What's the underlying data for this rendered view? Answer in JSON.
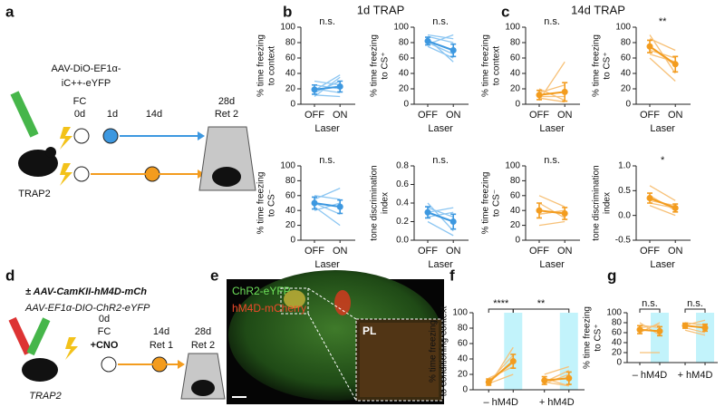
{
  "figure": {
    "panel_labels": [
      "a",
      "b",
      "c",
      "d",
      "e",
      "f",
      "g"
    ],
    "titles": [
      "1d TRAP",
      "14d TRAP"
    ]
  },
  "panel_a": {
    "virus": [
      "AAV-DiO-EF1α-",
      "iC++-eYFP"
    ],
    "fc": "FC",
    "day0": "0d",
    "day1": "1d",
    "day14": "14d",
    "day28": "28d",
    "ret": "Ret 2",
    "mouse": "TRAP2"
  },
  "panel_d": {
    "virus": [
      "± AAV-CamKII-hM4D-mCh",
      "AAV-EF1α-DIO-ChR2-eYFP"
    ],
    "day0": "0d",
    "fc": "FC",
    "cno": "+CNO",
    "day14": "14d",
    "ret1": "Ret 1",
    "day28": "28d",
    "ret2": "Ret 2",
    "mouse": "TRAP2"
  },
  "panel_e": {
    "green": "ChR2-eYFP",
    "red": "hM4D-mCherry",
    "region": "PL"
  },
  "chart_data": [
    {
      "type": "line",
      "ylabel": [
        "% time freezing",
        "to context"
      ],
      "ylim": [
        0,
        100
      ],
      "yticks": [
        0,
        20,
        40,
        60,
        80,
        100
      ],
      "categories": [
        "OFF",
        "ON"
      ],
      "xlabel": "Laser",
      "annotations": [
        "n.s."
      ],
      "color": "#3d98e0",
      "individual_color": "#8cc6f2",
      "values": [
        19,
        23
      ],
      "errors": [
        6,
        7
      ],
      "individuals": [
        [
          [
            10,
            35
          ],
          [
            15,
            30
          ],
          [
            20,
            15
          ],
          [
            25,
            20
          ],
          [
            18,
            38
          ],
          [
            30,
            25
          ],
          [
            12,
            10
          ]
        ]
      ]
    },
    {
      "type": "line",
      "ylabel": [
        "% time freezing",
        "to CS⁺"
      ],
      "ylim": [
        0,
        100
      ],
      "yticks": [
        0,
        20,
        40,
        60,
        80,
        100
      ],
      "categories": [
        "OFF",
        "ON"
      ],
      "xlabel": "Laser",
      "annotations": [
        "n.s."
      ],
      "color": "#3d98e0",
      "individual_color": "#8cc6f2",
      "values": [
        82,
        70
      ],
      "errors": [
        5,
        8
      ],
      "individuals": [
        [
          [
            90,
            85
          ],
          [
            85,
            55
          ],
          [
            80,
            65
          ],
          [
            88,
            80
          ],
          [
            75,
            60
          ],
          [
            78,
            90
          ]
        ]
      ]
    },
    {
      "type": "line",
      "ylabel": [
        "% time freezing",
        "to CS⁻"
      ],
      "ylim": [
        0,
        100
      ],
      "yticks": [
        0,
        20,
        40,
        60,
        80,
        100
      ],
      "categories": [
        "OFF",
        "ON"
      ],
      "xlabel": "Laser",
      "annotations": [
        "n.s."
      ],
      "color": "#3d98e0",
      "individual_color": "#8cc6f2",
      "values": [
        50,
        45
      ],
      "errors": [
        8,
        9
      ],
      "individuals": [
        [
          [
            60,
            55
          ],
          [
            45,
            20
          ],
          [
            55,
            70
          ],
          [
            40,
            50
          ],
          [
            50,
            35
          ]
        ]
      ]
    },
    {
      "type": "line",
      "ylabel": [
        "tone discrimination",
        "index"
      ],
      "ylim": [
        0,
        0.8
      ],
      "yticks": [
        {
          "value": 0,
          "label": "0.0"
        },
        0.2,
        0.4,
        0.6,
        0.8
      ],
      "categories": [
        "OFF",
        "ON"
      ],
      "xlabel": "Laser",
      "annotations": [
        "n.s."
      ],
      "color": "#3d98e0",
      "individual_color": "#8cc6f2",
      "values": [
        0.3,
        0.2
      ],
      "errors": [
        0.06,
        0.08
      ],
      "individuals": [
        [
          [
            0.4,
            0.1
          ],
          [
            0.3,
            0.35
          ],
          [
            0.2,
            0.05
          ],
          [
            0.35,
            0.25
          ],
          [
            0.25,
            0.3
          ]
        ]
      ]
    },
    {
      "type": "line",
      "ylabel": [
        "% time freezing",
        "to context"
      ],
      "ylim": [
        0,
        100
      ],
      "yticks": [
        0,
        20,
        40,
        60,
        80,
        100
      ],
      "categories": [
        "OFF",
        "ON"
      ],
      "xlabel": "Laser",
      "annotations": [
        "n.s."
      ],
      "color": "#f39c1e",
      "individual_color": "#f7c178",
      "values": [
        12,
        16
      ],
      "errors": [
        6,
        12
      ],
      "individuals": [
        [
          [
            5,
            55
          ],
          [
            20,
            5
          ],
          [
            10,
            10
          ],
          [
            15,
            25
          ],
          [
            8,
            3
          ]
        ]
      ]
    },
    {
      "type": "line",
      "ylabel": [
        "% time freezing",
        "to CS⁺"
      ],
      "ylim": [
        0,
        100
      ],
      "yticks": [
        0,
        20,
        40,
        60,
        80,
        100
      ],
      "categories": [
        "OFF",
        "ON"
      ],
      "xlabel": "Laser",
      "annotations": [
        "**"
      ],
      "color": "#f39c1e",
      "individual_color": "#f7c178",
      "values": [
        75,
        52
      ],
      "errors": [
        8,
        10
      ],
      "individuals": [
        [
          [
            85,
            70
          ],
          [
            90,
            40
          ],
          [
            70,
            60
          ],
          [
            60,
            30
          ],
          [
            75,
            50
          ],
          [
            65,
            55
          ]
        ]
      ]
    },
    {
      "type": "line",
      "ylabel": [
        "% time freezing",
        "to CS⁻"
      ],
      "ylim": [
        0,
        100
      ],
      "yticks": [
        0,
        20,
        40,
        60,
        80,
        100
      ],
      "categories": [
        "OFF",
        "ON"
      ],
      "xlabel": "Laser",
      "annotations": [
        "n.s."
      ],
      "color": "#f39c1e",
      "individual_color": "#f7c178",
      "values": [
        40,
        36
      ],
      "errors": [
        10,
        8
      ],
      "individuals": [
        [
          [
            60,
            45
          ],
          [
            50,
            30
          ],
          [
            35,
            40
          ],
          [
            20,
            25
          ],
          [
            35,
            40
          ]
        ]
      ]
    },
    {
      "type": "line",
      "ylabel": [
        "tone discrimination",
        "index"
      ],
      "ylim": [
        -0.5,
        1
      ],
      "yticks": [
        -0.5,
        {
          "value": 0,
          "label": "0.0"
        },
        0.5,
        {
          "value": 1,
          "label": "1.0"
        }
      ],
      "categories": [
        "OFF",
        "ON"
      ],
      "xlabel": "Laser",
      "annotations": [
        "*"
      ],
      "color": "#f39c1e",
      "individual_color": "#f7c178",
      "values": [
        0.35,
        0.15
      ],
      "errors": [
        0.1,
        0.08
      ],
      "individuals": [
        [
          [
            0.6,
            0.3
          ],
          [
            0.4,
            0.1
          ],
          [
            0.3,
            0.2
          ],
          [
            0.2,
            0
          ],
          [
            0.25,
            0.15
          ]
        ]
      ]
    },
    {
      "type": "line",
      "ylabel": [
        "% time freezing",
        "to conditioning context"
      ],
      "ylim": [
        0,
        100
      ],
      "yticks": [
        0,
        20,
        40,
        60,
        80,
        100
      ],
      "groups": [
        "– hM4D",
        "+ hM4D"
      ],
      "annotations": [
        "****",
        "**"
      ],
      "color": "#f39c1e",
      "individual_color": "#f7c178",
      "highlight_color": "#c2f3fb",
      "values": [
        10,
        37,
        12,
        15
      ],
      "errors": [
        4,
        9,
        5,
        8
      ],
      "individuals": [
        [
          [
            5,
            55
          ],
          [
            10,
            45
          ],
          [
            15,
            30
          ],
          [
            8,
            20
          ],
          [
            12,
            35
          ]
        ],
        [
          [
            10,
            25
          ],
          [
            15,
            5
          ],
          [
            8,
            20
          ],
          [
            20,
            30
          ],
          [
            10,
            5
          ]
        ]
      ]
    },
    {
      "type": "line",
      "ylabel": [
        "% time freezing",
        "to CS⁺"
      ],
      "ylim": [
        0,
        100
      ],
      "yticks": [
        0,
        20,
        40,
        60,
        80,
        100
      ],
      "groups": [
        "– hM4D",
        "+ hM4D"
      ],
      "annotations": [
        "n.s.",
        "n.s."
      ],
      "color": "#f39c1e",
      "individual_color": "#f7c178",
      "highlight_color": "#c2f3fb",
      "values": [
        66,
        63,
        74,
        70
      ],
      "errors": [
        8,
        9,
        5,
        7
      ],
      "individuals": [
        [
          [
            80,
            55
          ],
          [
            70,
            75
          ],
          [
            20,
            20
          ],
          [
            75,
            70
          ],
          [
            60,
            80
          ]
        ],
        [
          [
            80,
            75
          ],
          [
            70,
            60
          ],
          [
            75,
            85
          ],
          [
            65,
            55
          ],
          [
            80,
            75
          ]
        ]
      ]
    }
  ]
}
